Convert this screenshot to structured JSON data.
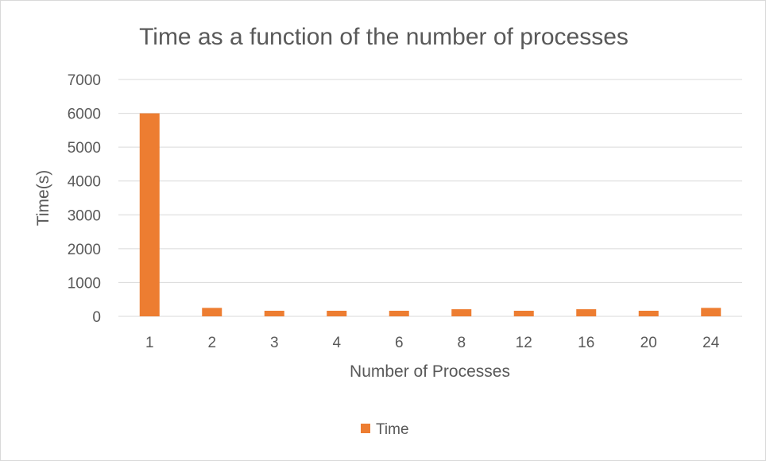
{
  "chart_data": {
    "type": "bar",
    "title": "Time as a function of the number of processes",
    "xlabel": "Number of Processes",
    "ylabel": "Time(s)",
    "categories": [
      "1",
      "2",
      "3",
      "4",
      "6",
      "8",
      "12",
      "16",
      "20",
      "24"
    ],
    "series": [
      {
        "name": "Time",
        "color": "#ed7d31",
        "values": [
          6000,
          250,
          165,
          165,
          165,
          210,
          165,
          210,
          165,
          250
        ]
      }
    ],
    "ylim": [
      0,
      7000
    ],
    "yticks": [
      "0",
      "1000",
      "2000",
      "3000",
      "4000",
      "5000",
      "6000",
      "7000"
    ],
    "grid": true,
    "legend_position": "bottom"
  }
}
